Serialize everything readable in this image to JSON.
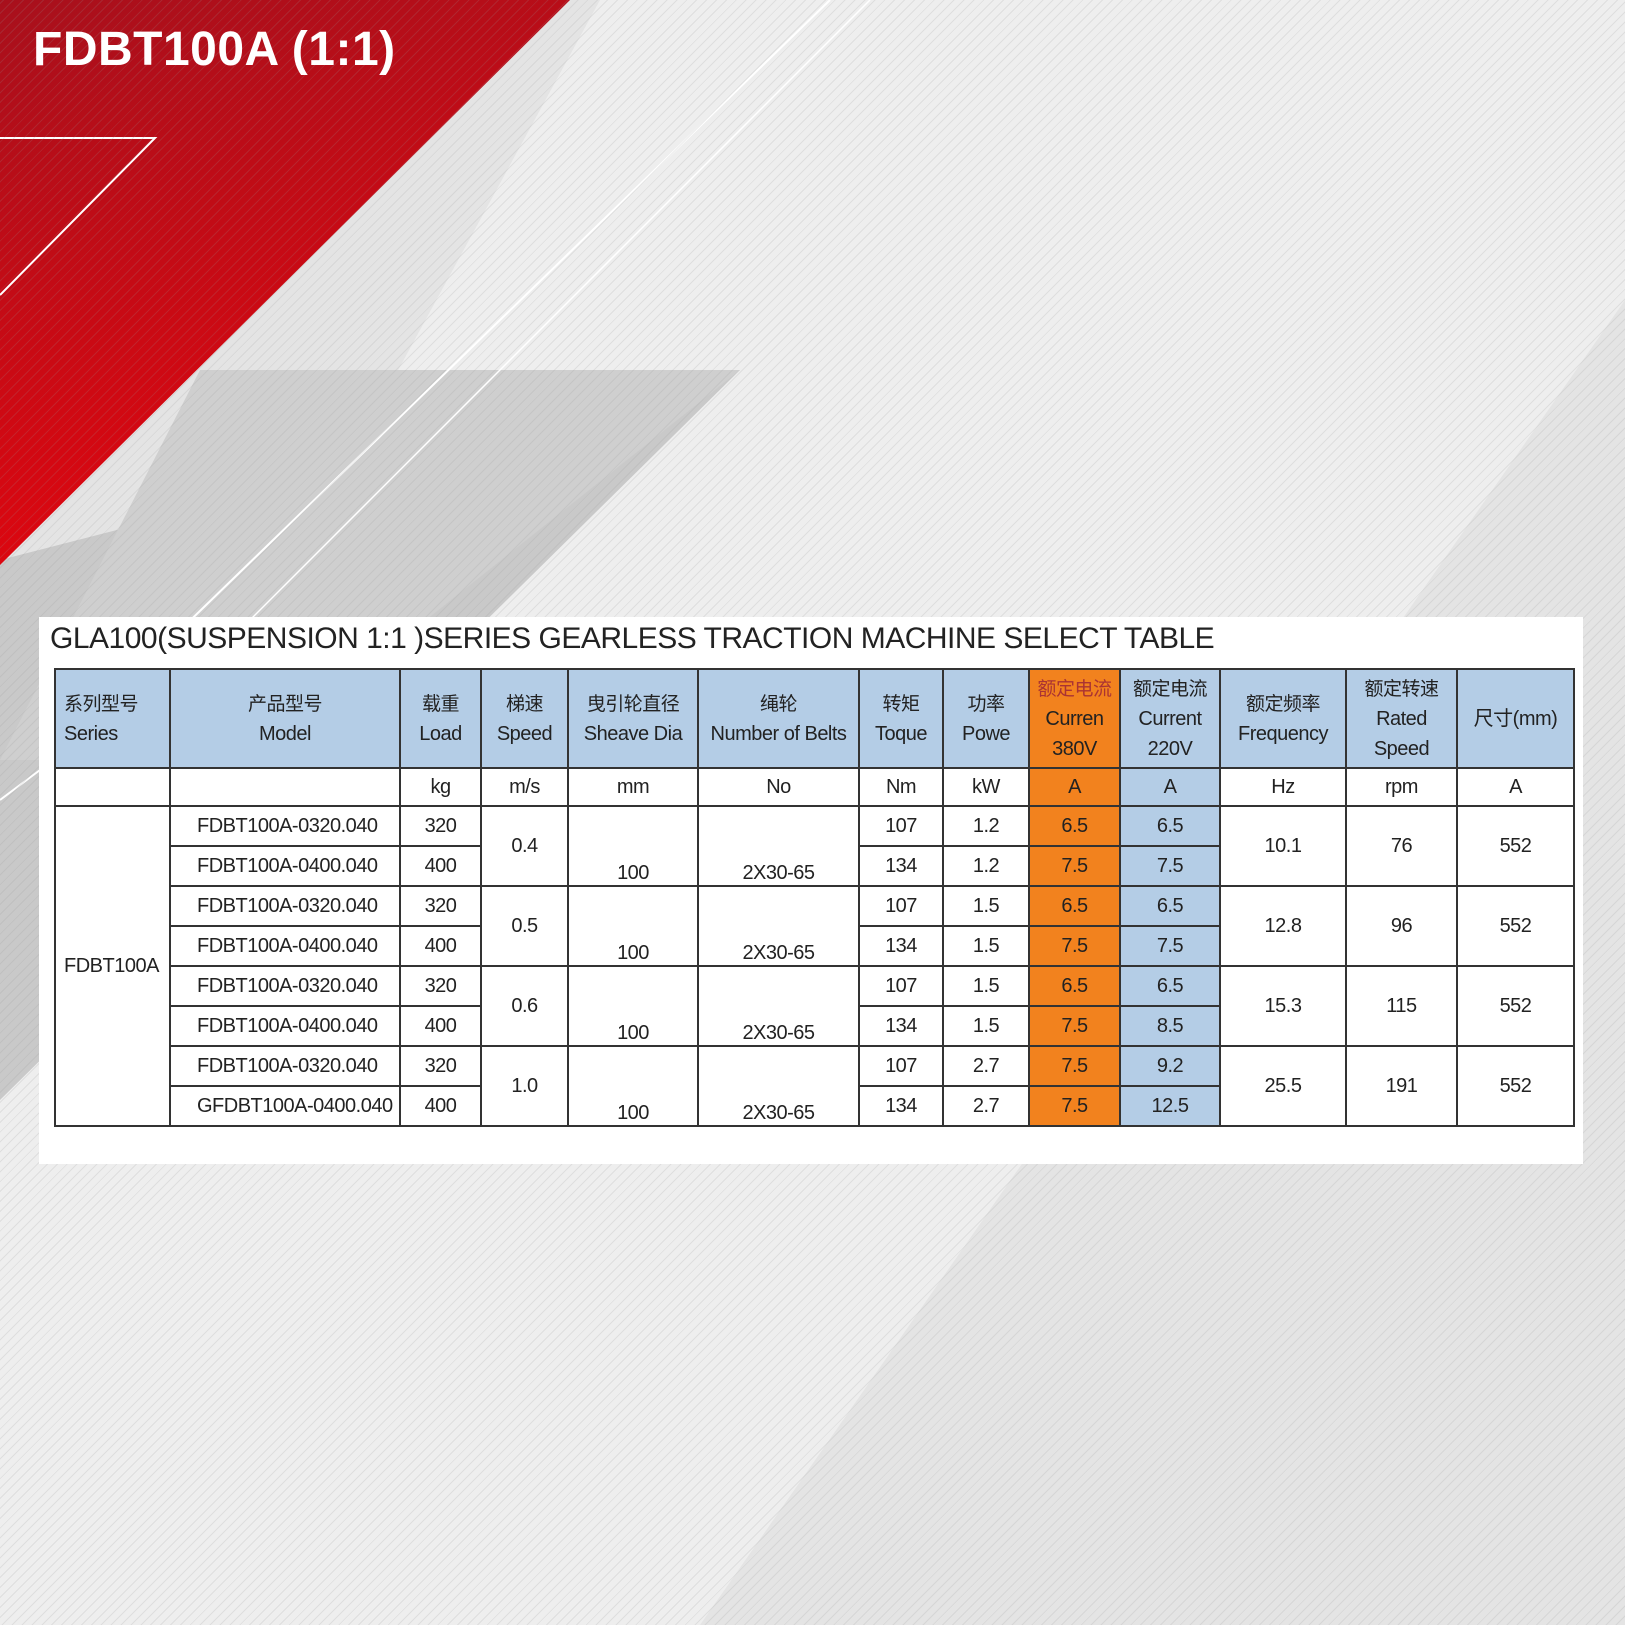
{
  "headline": "FDBT100A (1:1)",
  "table_title": "GLA100(SUSPENSION 1:1 )SERIES GEARLESS TRACTION MACHINE SELECT TABLE",
  "colors": {
    "red": "#c8101a",
    "orange": "#f2821e",
    "header_blue": "#b4cde6"
  },
  "headers": [
    {
      "cn": "系列型号",
      "en": "Series",
      "unit": ""
    },
    {
      "cn": "产品型号",
      "en": "Model",
      "unit": ""
    },
    {
      "cn": "载重",
      "en": "Load",
      "unit": "kg"
    },
    {
      "cn": "梯速",
      "en": "Speed",
      "unit": "m/s"
    },
    {
      "cn": "曳引轮直径",
      "en": "Sheave  Dia",
      "unit": "mm"
    },
    {
      "cn": "绳轮",
      "en": "Number of Belts",
      "unit": "No"
    },
    {
      "cn": "转矩",
      "en": "Toque",
      "unit": "Nm"
    },
    {
      "cn": "功率",
      "en": "Powe",
      "unit": "kW"
    },
    {
      "cn": "额定电流",
      "en": "Curren 380V",
      "unit": "A"
    },
    {
      "cn": "额定电流",
      "en": "Current 220V",
      "unit": "A"
    },
    {
      "cn": "额定频率",
      "en": "Frequency",
      "unit": "Hz"
    },
    {
      "cn": "额定转速",
      "en": "Rated Speed",
      "unit": "rpm"
    },
    {
      "cn": "",
      "en": "尺寸(mm)",
      "unit": "A"
    }
  ],
  "series": "FDBT100A",
  "groups": [
    {
      "speed": "0.4",
      "sheave": "100",
      "belts": "2X30-65",
      "freq": "10.1",
      "rpm": "76",
      "dim": "552",
      "rows": [
        {
          "model": "FDBT100A-0320.040",
          "load": "320",
          "torque": "107",
          "power": "1.2",
          "i380": "6.5",
          "i220": "6.5"
        },
        {
          "model": "FDBT100A-0400.040",
          "load": "400",
          "torque": "134",
          "power": "1.2",
          "i380": "7.5",
          "i220": "7.5"
        }
      ]
    },
    {
      "speed": "0.5",
      "sheave": "100",
      "belts": "2X30-65",
      "freq": "12.8",
      "rpm": "96",
      "dim": "552",
      "rows": [
        {
          "model": "FDBT100A-0320.040",
          "load": "320",
          "torque": "107",
          "power": "1.5",
          "i380": "6.5",
          "i220": "6.5"
        },
        {
          "model": "FDBT100A-0400.040",
          "load": "400",
          "torque": "134",
          "power": "1.5",
          "i380": "7.5",
          "i220": "7.5"
        }
      ]
    },
    {
      "speed": "0.6",
      "sheave": "100",
      "belts": "2X30-65",
      "freq": "15.3",
      "rpm": "115",
      "dim": "552",
      "rows": [
        {
          "model": "FDBT100A-0320.040",
          "load": "320",
          "torque": "107",
          "power": "1.5",
          "i380": "6.5",
          "i220": "6.5"
        },
        {
          "model": "FDBT100A-0400.040",
          "load": "400",
          "torque": "134",
          "power": "1.5",
          "i380": "7.5",
          "i220": "8.5"
        }
      ]
    },
    {
      "speed": "1.0",
      "sheave": "100",
      "belts": "2X30-65",
      "freq": "25.5",
      "rpm": "191",
      "dim": "552",
      "rows": [
        {
          "model": "FDBT100A-0320.040",
          "load": "320",
          "torque": "107",
          "power": "2.7",
          "i380": "7.5",
          "i220": "9.2"
        },
        {
          "model": "GFDBT100A-0400.040",
          "load": "400",
          "torque": "134",
          "power": "2.7",
          "i380": "7.5",
          "i220": "12.5"
        }
      ]
    }
  ]
}
